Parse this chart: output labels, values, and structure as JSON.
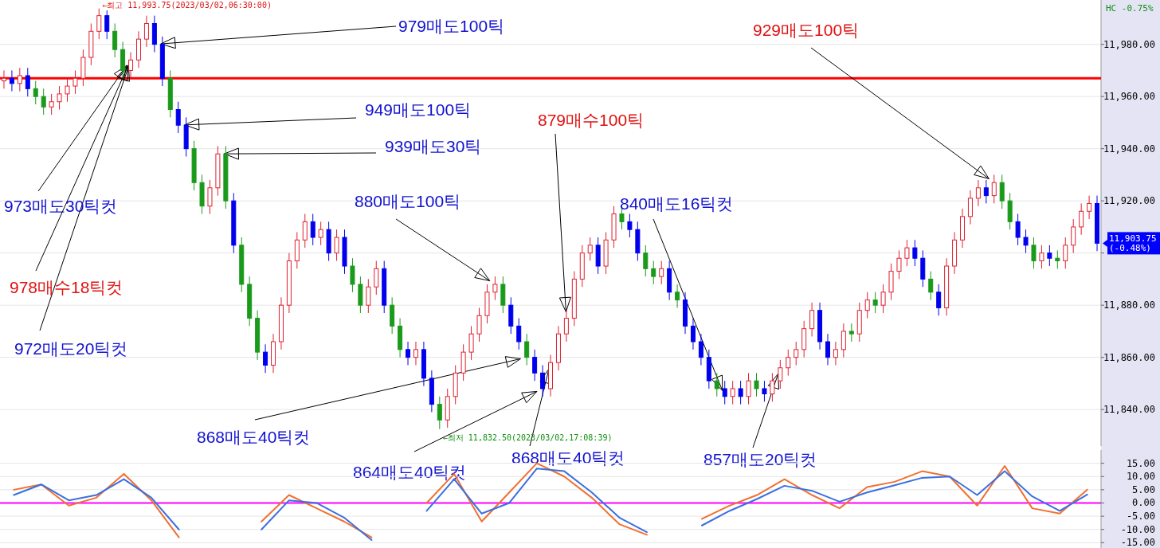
{
  "chart_data": [
    {
      "type": "candlestick",
      "categories": [
        null,
        null,
        null,
        null,
        null,
        null,
        null,
        null,
        null,
        null,
        null,
        null,
        null,
        null,
        null,
        null,
        null,
        null,
        null,
        null,
        null,
        null,
        null,
        null,
        null,
        null,
        null,
        null,
        null,
        null,
        null,
        null,
        null,
        null,
        null,
        null,
        null,
        null,
        null,
        null,
        null,
        null,
        null,
        null,
        null,
        null,
        null,
        null,
        null,
        null,
        null,
        null,
        null,
        null,
        null,
        null,
        null,
        null,
        null,
        null,
        null,
        null,
        null,
        null,
        null,
        null,
        null,
        null,
        null,
        null,
        null,
        null,
        null,
        null,
        null,
        null,
        null,
        null,
        null,
        null,
        null,
        null,
        null,
        null,
        null,
        null,
        null,
        null,
        null,
        null,
        null,
        null,
        null,
        null,
        null,
        null,
        null,
        null,
        null,
        null,
        null,
        null,
        null,
        null,
        null,
        null,
        null,
        null,
        null,
        null,
        null,
        null,
        null,
        null,
        null,
        null,
        null,
        null,
        null,
        null,
        null,
        null,
        null,
        null,
        null,
        null,
        null,
        null,
        null,
        null,
        null,
        null,
        null,
        null,
        null,
        null,
        null,
        null,
        null
      ],
      "ohlc": [
        [
          11966,
          11970,
          11963,
          11967
        ],
        [
          11967,
          11970,
          11962,
          11965
        ],
        [
          11965,
          11971,
          11962,
          11968
        ],
        [
          11968,
          11971,
          11960,
          11963
        ],
        [
          11963,
          11966,
          11957,
          11960
        ],
        [
          11960,
          11963,
          11953,
          11956
        ],
        [
          11956,
          11961,
          11953,
          11958
        ],
        [
          11958,
          11964,
          11955,
          11961
        ],
        [
          11961,
          11967,
          11958,
          11964
        ],
        [
          11964,
          11970,
          11961,
          11967
        ],
        [
          11967,
          11978,
          11964,
          11975
        ],
        [
          11975,
          11988,
          11972,
          11985
        ],
        [
          11985,
          11993.75,
          11982,
          11991
        ],
        [
          11991,
          11993,
          11982,
          11985
        ],
        [
          11985,
          11988,
          11975,
          11978
        ],
        [
          11978,
          11981,
          11967,
          11970
        ],
        [
          11970,
          11977,
          11967,
          11974
        ],
        [
          11974,
          11985,
          11971,
          11982
        ],
        [
          11982,
          11991,
          11979,
          11988
        ],
        [
          11988,
          11991,
          11977,
          11980
        ],
        [
          11980,
          11983,
          11964,
          11967
        ],
        [
          11967,
          11970,
          11952,
          11955
        ],
        [
          11955,
          11958,
          11946,
          11949
        ],
        [
          11949,
          11952,
          11937,
          11940
        ],
        [
          11940,
          11943,
          11924,
          11927
        ],
        [
          11927,
          11930,
          11915,
          11918
        ],
        [
          11918,
          11928,
          11915,
          11925
        ],
        [
          11925,
          11941,
          11922,
          11938
        ],
        [
          11938,
          11941,
          11917,
          11920
        ],
        [
          11920,
          11923,
          11900,
          11903
        ],
        [
          11903,
          11906,
          11885,
          11888
        ],
        [
          11888,
          11891,
          11872,
          11875
        ],
        [
          11875,
          11878,
          11859,
          11862
        ],
        [
          11862,
          11865,
          11854,
          11857
        ],
        [
          11857,
          11869,
          11854,
          11866
        ],
        [
          11866,
          11883,
          11863,
          11880
        ],
        [
          11880,
          11900,
          11877,
          11897
        ],
        [
          11897,
          11908,
          11894,
          11905
        ],
        [
          11905,
          11915,
          11902,
          11912
        ],
        [
          11912,
          11915,
          11903,
          11906
        ],
        [
          11906,
          11912,
          11903,
          11909
        ],
        [
          11909,
          11912,
          11897,
          11900
        ],
        [
          11900,
          11909,
          11897,
          11906
        ],
        [
          11906,
          11909,
          11892,
          11895
        ],
        [
          11895,
          11898,
          11885,
          11888
        ],
        [
          11888,
          11891,
          11877,
          11880
        ],
        [
          11880,
          11890,
          11877,
          11887
        ],
        [
          11887,
          11897,
          11884,
          11894
        ],
        [
          11894,
          11897,
          11877,
          11880
        ],
        [
          11880,
          11883,
          11869,
          11872
        ],
        [
          11872,
          11875,
          11860,
          11863
        ],
        [
          11863,
          11866,
          11857,
          11860
        ],
        [
          11860,
          11866,
          11857,
          11863
        ],
        [
          11863,
          11866,
          11849,
          11852
        ],
        [
          11852,
          11855,
          11839,
          11842
        ],
        [
          11842,
          11845,
          11832.5,
          11836
        ],
        [
          11836,
          11848,
          11833,
          11845
        ],
        [
          11845,
          11857,
          11842,
          11854
        ],
        [
          11854,
          11865,
          11851,
          11862
        ],
        [
          11862,
          11872,
          11859,
          11869
        ],
        [
          11869,
          11879,
          11866,
          11876
        ],
        [
          11876,
          11888,
          11873,
          11885
        ],
        [
          11885,
          11891,
          11882,
          11888
        ],
        [
          11888,
          11891,
          11877,
          11880
        ],
        [
          11880,
          11883,
          11869,
          11872
        ],
        [
          11872,
          11875,
          11863,
          11866
        ],
        [
          11866,
          11869,
          11857,
          11860
        ],
        [
          11860,
          11863,
          11851,
          11854
        ],
        [
          11854,
          11857,
          11845,
          11848
        ],
        [
          11848,
          11861,
          11845,
          11858
        ],
        [
          11858,
          11872,
          11855,
          11869
        ],
        [
          11869,
          11878,
          11866,
          11875
        ],
        [
          11875,
          11893,
          11872,
          11890
        ],
        [
          11890,
          11903,
          11887,
          11900
        ],
        [
          11900,
          11906,
          11897,
          11903
        ],
        [
          11903,
          11906,
          11892,
          11895
        ],
        [
          11895,
          11908,
          11892,
          11905
        ],
        [
          11905,
          11918,
          11902,
          11915
        ],
        [
          11915,
          11918,
          11909,
          11912
        ],
        [
          11912,
          11915,
          11906,
          11909
        ],
        [
          11909,
          11912,
          11897,
          11900
        ],
        [
          11900,
          11903,
          11891,
          11894
        ],
        [
          11894,
          11897,
          11888,
          11891
        ],
        [
          11891,
          11897,
          11888,
          11894
        ],
        [
          11894,
          11897,
          11882,
          11885
        ],
        [
          11885,
          11888,
          11879,
          11882
        ],
        [
          11882,
          11885,
          11869,
          11872
        ],
        [
          11872,
          11875,
          11863,
          11866
        ],
        [
          11866,
          11869,
          11857,
          11860
        ],
        [
          11860,
          11863,
          11848,
          11851
        ],
        [
          11851,
          11854,
          11845,
          11848
        ],
        [
          11848,
          11851,
          11842,
          11845
        ],
        [
          11845,
          11851,
          11842,
          11848
        ],
        [
          11848,
          11851,
          11842,
          11845
        ],
        [
          11845,
          11854,
          11842,
          11851
        ],
        [
          11851,
          11854,
          11845,
          11848
        ],
        [
          11848,
          11851,
          11843,
          11846
        ],
        [
          11846,
          11854,
          11843,
          11851
        ],
        [
          11851,
          11859,
          11848,
          11856
        ],
        [
          11856,
          11863,
          11853,
          11860
        ],
        [
          11860,
          11866,
          11857,
          11863
        ],
        [
          11863,
          11874,
          11860,
          11871
        ],
        [
          11871,
          11881,
          11868,
          11878
        ],
        [
          11878,
          11881,
          11863,
          11866
        ],
        [
          11866,
          11869,
          11857,
          11860
        ],
        [
          11860,
          11866,
          11857,
          11863
        ],
        [
          11863,
          11873,
          11860,
          11870
        ],
        [
          11870,
          11873,
          11866,
          11869
        ],
        [
          11869,
          11881,
          11866,
          11878
        ],
        [
          11878,
          11885,
          11875,
          11882
        ],
        [
          11882,
          11885,
          11877,
          11880
        ],
        [
          11880,
          11888,
          11877,
          11885
        ],
        [
          11885,
          11896,
          11882,
          11893
        ],
        [
          11893,
          11901,
          11890,
          11898
        ],
        [
          11898,
          11905,
          11895,
          11902
        ],
        [
          11902,
          11905,
          11895,
          11898
        ],
        [
          11898,
          11901,
          11887,
          11890
        ],
        [
          11890,
          11893,
          11882,
          11885
        ],
        [
          11885,
          11888,
          11876,
          11879
        ],
        [
          11879,
          11898,
          11876,
          11895
        ],
        [
          11895,
          11908,
          11892,
          11905
        ],
        [
          11905,
          11917,
          11902,
          11914
        ],
        [
          11914,
          11924,
          11911,
          11921
        ],
        [
          11921,
          11928,
          11918,
          11925
        ],
        [
          11925,
          11928,
          11919,
          11922
        ],
        [
          11922,
          11930,
          11919,
          11927
        ],
        [
          11927,
          11930,
          11917,
          11920
        ],
        [
          11920,
          11923,
          11909,
          11912
        ],
        [
          11912,
          11915,
          11903,
          11906
        ],
        [
          11906,
          11909,
          11900,
          11903
        ],
        [
          11903,
          11906,
          11894,
          11897
        ],
        [
          11897,
          11903,
          11894,
          11900
        ],
        [
          11900,
          11903,
          11895,
          11898
        ],
        [
          11898,
          11901,
          11894,
          11897
        ],
        [
          11897,
          11906,
          11894,
          11903
        ],
        [
          11903,
          11913,
          11900,
          11910
        ],
        [
          11910,
          11919,
          11907,
          11916
        ],
        [
          11916,
          11922,
          11913,
          11919
        ],
        [
          11919,
          11922,
          11900.75,
          11903.75
        ]
      ],
      "colors": [
        "#e02030",
        "#0000ee",
        "#e02030",
        "#0000ee",
        "#1a9a1a",
        "#1a9a1a",
        "#e02030",
        "#e02030",
        "#e02030",
        "#e02030",
        "#e02030",
        "#e02030",
        "#e02030",
        "#0000ee",
        "#1a9a1a",
        "#1a9a1a",
        "#e02030",
        "#e02030",
        "#e02030",
        "#0000ee",
        "#0000ee",
        "#1a9a1a",
        "#0000ee",
        "#0000ee",
        "#1a9a1a",
        "#1a9a1a",
        "#e02030",
        "#e02030",
        "#1a9a1a",
        "#0000ee",
        "#1a9a1a",
        "#1a9a1a",
        "#1a9a1a",
        "#0000ee",
        "#e02030",
        "#e02030",
        "#e02030",
        "#e02030",
        "#e02030",
        "#0000ee",
        "#e02030",
        "#0000ee",
        "#e02030",
        "#0000ee",
        "#1a9a1a",
        "#1a9a1a",
        "#e02030",
        "#e02030",
        "#0000ee",
        "#1a9a1a",
        "#1a9a1a",
        "#0000ee",
        "#e02030",
        "#0000ee",
        "#0000ee",
        "#1a9a1a",
        "#e02030",
        "#e02030",
        "#e02030",
        "#e02030",
        "#e02030",
        "#e02030",
        "#e02030",
        "#1a9a1a",
        "#0000ee",
        "#0000ee",
        "#1a9a1a",
        "#0000ee",
        "#0000ee",
        "#e02030",
        "#e02030",
        "#e02030",
        "#e02030",
        "#e02030",
        "#e02030",
        "#0000ee",
        "#e02030",
        "#e02030",
        "#1a9a1a",
        "#0000ee",
        "#0000ee",
        "#1a9a1a",
        "#1a9a1a",
        "#e02030",
        "#0000ee",
        "#1a9a1a",
        "#0000ee",
        "#0000ee",
        "#0000ee",
        "#0000ee",
        "#1a9a1a",
        "#0000ee",
        "#e02030",
        "#0000ee",
        "#e02030",
        "#1a9a1a",
        "#0000ee",
        "#e02030",
        "#e02030",
        "#e02030",
        "#e02030",
        "#e02030",
        "#e02030",
        "#0000ee",
        "#0000ee",
        "#e02030",
        "#e02030",
        "#1a9a1a",
        "#e02030",
        "#e02030",
        "#1a9a1a",
        "#e02030",
        "#e02030",
        "#e02030",
        "#e02030",
        "#0000ee",
        "#0000ee",
        "#1a9a1a",
        "#0000ee",
        "#e02030",
        "#e02030",
        "#e02030",
        "#e02030",
        "#e02030",
        "#0000ee",
        "#e02030",
        "#1a9a1a",
        "#1a9a1a",
        "#0000ee",
        "#0000ee",
        "#1a9a1a",
        "#e02030",
        "#0000ee",
        "#1a9a1a",
        "#e02030",
        "#e02030",
        "#e02030",
        "#e02030",
        "#0000ee"
      ],
      "ylim": [
        11826,
        11997
      ],
      "yticks": [
        {
          "value": 11840,
          "label": "11,840.00"
        },
        {
          "value": 11860,
          "label": "11,860.00"
        },
        {
          "value": 11880,
          "label": "11,880.00"
        },
        {
          "value": 11900,
          "label": null
        },
        {
          "value": 11920,
          "label": "11,920.00"
        },
        {
          "value": 11940,
          "label": "11,940.00"
        },
        {
          "value": 11960,
          "label": "11,960.00"
        },
        {
          "value": 11980,
          "label": "11,980.00"
        }
      ],
      "grid": "y",
      "ref_lines": [
        {
          "axis": "y",
          "value": 11967,
          "color": "#ff0000"
        }
      ],
      "annotations": [
        "←최고 11,993.75(2023/03/02,06:30:00)",
        "←최저 11,832.50(2023/03/02,17:08:39)",
        "11,903.75 (-0.48%)",
        "HC -0.75%",
        "979매도100틱",
        "949매도100틱",
        "939매도30틱",
        "973매도30틱컷",
        "978매수18틱컷",
        "972매도20틱컷",
        "880매도100틱",
        "879매수100틱",
        "868매도40틱컷",
        "864매도40틱컷",
        "868매도40틱컷",
        "840매도16틱컷",
        "857매도20틱컷",
        "929매도100틱"
      ]
    },
    {
      "type": "line",
      "categories": [
        null,
        null,
        null,
        null,
        null,
        null,
        null,
        null,
        null,
        null,
        null,
        null,
        null,
        null,
        null,
        null,
        null,
        null,
        null,
        null,
        null,
        null,
        null,
        null,
        null,
        null,
        null,
        null,
        null,
        null,
        null,
        null,
        null,
        null,
        null,
        null,
        null,
        null,
        null,
        null
      ],
      "series": [
        {
          "color": "#f07030",
          "values": [
            5,
            7,
            -1,
            2,
            11,
            1,
            -13,
            null,
            null,
            -7,
            3,
            -2,
            -7,
            -13,
            null,
            0,
            11,
            -7,
            4,
            15,
            10,
            2,
            -8,
            -12,
            null,
            -6,
            -1,
            3,
            9,
            3,
            -2,
            6,
            8,
            12,
            10,
            -1,
            14,
            -2,
            -4,
            5
          ]
        },
        {
          "color": "#3a70e0",
          "values": [
            3,
            7,
            1,
            3,
            9,
            2,
            -10,
            null,
            null,
            -10,
            1,
            0,
            -5.5,
            -14,
            null,
            -3,
            9,
            -4,
            0,
            13,
            12,
            4,
            -5.5,
            -11,
            null,
            -8.5,
            -3,
            1.5,
            6.5,
            4.6,
            0.5,
            4,
            6.7,
            9.5,
            10,
            3,
            12,
            2.5,
            -3,
            3.2
          ]
        }
      ],
      "ylim": [
        -17,
        20
      ],
      "yticks": [
        {
          "value": 15,
          "label": "15.00"
        },
        {
          "value": 10,
          "label": "10.00"
        },
        {
          "value": 5,
          "label": "5.00"
        },
        {
          "value": 0,
          "label": "0.00"
        },
        {
          "value": -5,
          "label": "-5.00"
        },
        {
          "value": -10,
          "label": "-10.00"
        },
        {
          "value": -15,
          "label": "-15.00"
        }
      ],
      "grid": "y",
      "ref_lines": [
        {
          "axis": "y",
          "value": 0,
          "color": "#ff00ff"
        }
      ]
    }
  ]
}
